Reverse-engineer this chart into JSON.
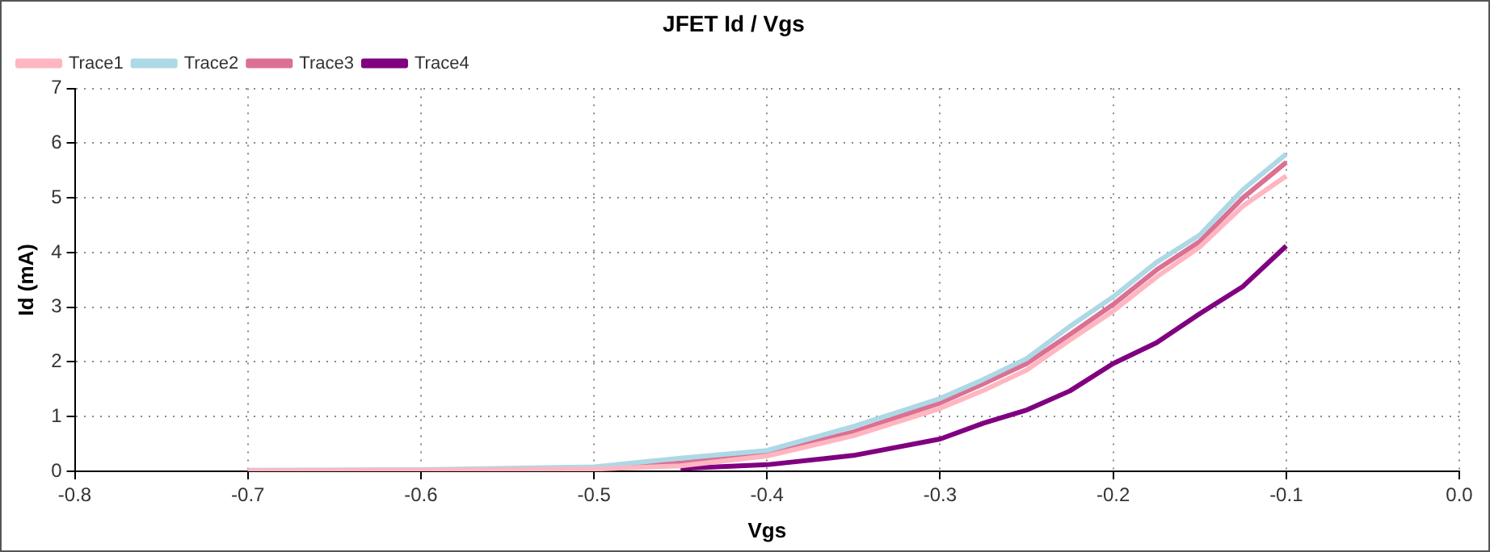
{
  "chart_data": {
    "type": "line",
    "title": "JFET Id / Vgs",
    "xlabel": "Vgs",
    "ylabel": "Id (mA)",
    "x": [
      -0.7,
      -0.6,
      -0.5,
      -0.45,
      -0.4,
      -0.35,
      -0.3,
      -0.275,
      -0.25,
      -0.225,
      -0.2,
      -0.175,
      -0.15,
      -0.125,
      -0.1
    ],
    "series": [
      {
        "name": "Trace1",
        "color": "#ffb6c1",
        "values": [
          0.01,
          0.02,
          0.04,
          0.1,
          0.28,
          0.65,
          1.15,
          1.48,
          1.85,
          2.4,
          2.93,
          3.55,
          4.1,
          4.85,
          5.4
        ]
      },
      {
        "name": "Trace2",
        "color": "#add8e6",
        "values": [
          0.02,
          0.03,
          0.08,
          0.24,
          0.38,
          0.82,
          1.33,
          1.68,
          2.06,
          2.65,
          3.19,
          3.82,
          4.32,
          5.15,
          5.8
        ]
      },
      {
        "name": "Trace3",
        "color": "#db7093",
        "values": [
          0.01,
          0.02,
          0.06,
          0.15,
          0.32,
          0.72,
          1.25,
          1.6,
          1.97,
          2.5,
          3.05,
          3.68,
          4.2,
          5.0,
          5.65
        ]
      },
      {
        "name": "Trace4",
        "color": "#800080",
        "values": [
          0,
          0,
          null,
          0.05,
          0.12,
          0.29,
          0.59,
          0.88,
          1.12,
          1.47,
          1.97,
          2.35,
          2.88,
          3.38,
          4.12
        ]
      }
    ],
    "xlim": [
      -0.8,
      0
    ],
    "xticks": [
      {
        "value": -0.8,
        "label": "-0.8"
      },
      {
        "value": -0.7,
        "label": "-0.7"
      },
      {
        "value": -0.6,
        "label": "-0.6"
      },
      {
        "value": -0.5,
        "label": "-0.5"
      },
      {
        "value": -0.4,
        "label": "-0.4"
      },
      {
        "value": -0.3,
        "label": "-0.3"
      },
      {
        "value": -0.2,
        "label": "-0.2"
      },
      {
        "value": -0.1,
        "label": "-0.1"
      },
      {
        "value": 0,
        "label": "0.0"
      }
    ],
    "ylim": [
      0,
      7
    ],
    "yticks": [
      0,
      1,
      2,
      3,
      4,
      5,
      6,
      7
    ],
    "grid": true,
    "legend": "top left",
    "line_style": "solid",
    "marker": "none"
  }
}
